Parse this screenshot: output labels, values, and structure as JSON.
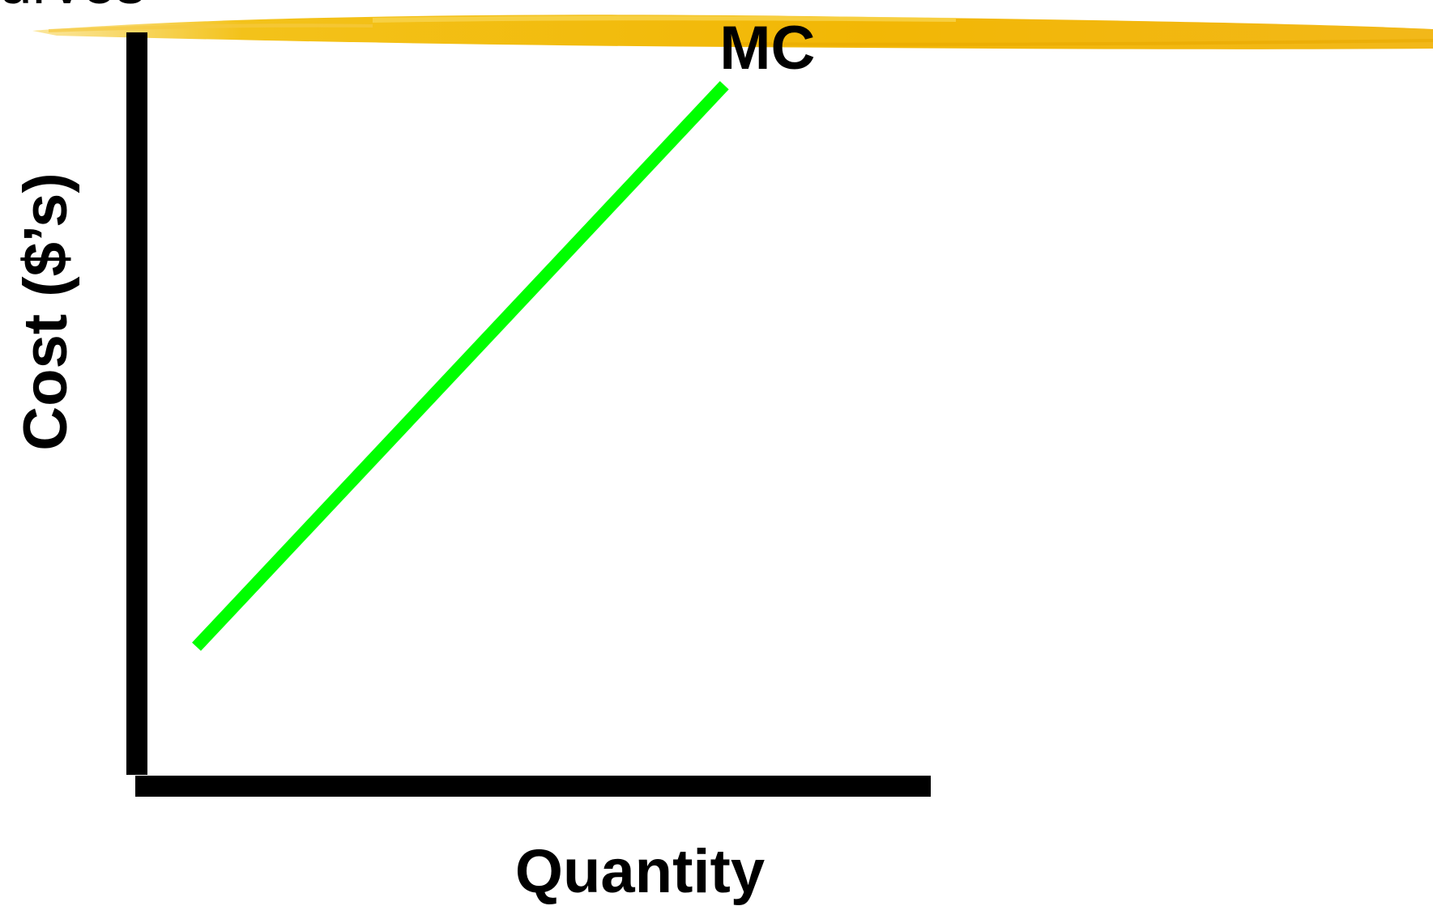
{
  "slide": {
    "title_fragment": "Curves",
    "accent_color": "#f2b705"
  },
  "chart_data": {
    "type": "line",
    "xlabel": "Quantity",
    "ylabel": "Cost ($’s)",
    "xlim": [
      0,
      10
    ],
    "ylim": [
      0,
      10
    ],
    "grid": false,
    "legend": "none",
    "series": [
      {
        "name": "MC",
        "color": "#00ff00",
        "x": [
          0.75,
          7.4
        ],
        "y": [
          1.85,
          9.3
        ]
      }
    ]
  }
}
